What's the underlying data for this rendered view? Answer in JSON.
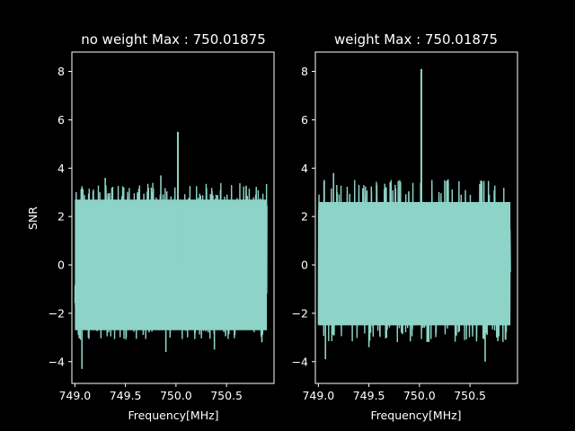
{
  "theme": {
    "background": "#000000",
    "foreground": "#ffffff",
    "series_color": "#8dd3c7"
  },
  "chart_data": [
    {
      "type": "line",
      "title": "no weight Max : 750.01875",
      "xlabel": "Frequency[MHz]",
      "ylabel": "SNR",
      "xlim": [
        748.97,
        750.97
      ],
      "ylim": [
        -4.9,
        8.8
      ],
      "xticks": [
        749.0,
        749.5,
        750.0,
        750.5
      ],
      "xtick_labels": [
        "749.0",
        "749.5",
        "750.0",
        "750.5"
      ],
      "yticks": [
        -4,
        -2,
        0,
        2,
        4,
        6,
        8
      ],
      "ytick_labels": [
        "−4",
        "−2",
        "0",
        "2",
        "4",
        "6",
        "8"
      ],
      "grid": false,
      "series": [
        {
          "x_range": [
            749.0,
            750.9
          ],
          "noise_band": [
            -2.7,
            2.7
          ],
          "typical_max": 3.4,
          "typical_min": -3.1,
          "peak": {
            "x": 750.01875,
            "y": 5.5
          },
          "extremes": [
            {
              "x": 749.07,
              "y": -4.3
            },
            {
              "x": 749.3,
              "y": 3.6
            },
            {
              "x": 749.85,
              "y": 3.7
            },
            {
              "x": 749.9,
              "y": -3.6
            },
            {
              "x": 750.38,
              "y": -3.5
            },
            {
              "x": 750.85,
              "y": -3.2
            }
          ]
        }
      ]
    },
    {
      "type": "line",
      "title": "weight Max : 750.01875",
      "xlabel": "Frequency[MHz]",
      "ylabel": "",
      "xlim": [
        748.97,
        750.97
      ],
      "ylim": [
        -4.9,
        8.8
      ],
      "xticks": [
        749.0,
        749.5,
        750.0,
        750.5
      ],
      "xtick_labels": [
        "749.0",
        "749.5",
        "750.0",
        "750.5"
      ],
      "yticks": [
        -4,
        -2,
        0,
        2,
        4,
        6,
        8
      ],
      "ytick_labels": [
        "−4",
        "−2",
        "0",
        "2",
        "4",
        "6",
        "8"
      ],
      "grid": false,
      "series": [
        {
          "x_range": [
            749.0,
            750.9
          ],
          "noise_band": [
            -2.5,
            2.6
          ],
          "typical_max": 3.6,
          "typical_min": -3.2,
          "peak": {
            "x": 750.01875,
            "y": 8.1
          },
          "extremes": [
            {
              "x": 749.07,
              "y": -3.9
            },
            {
              "x": 749.15,
              "y": 3.8
            },
            {
              "x": 750.25,
              "y": 3.5
            },
            {
              "x": 750.65,
              "y": -4.0
            },
            {
              "x": 749.5,
              "y": -3.4
            }
          ]
        }
      ]
    }
  ]
}
